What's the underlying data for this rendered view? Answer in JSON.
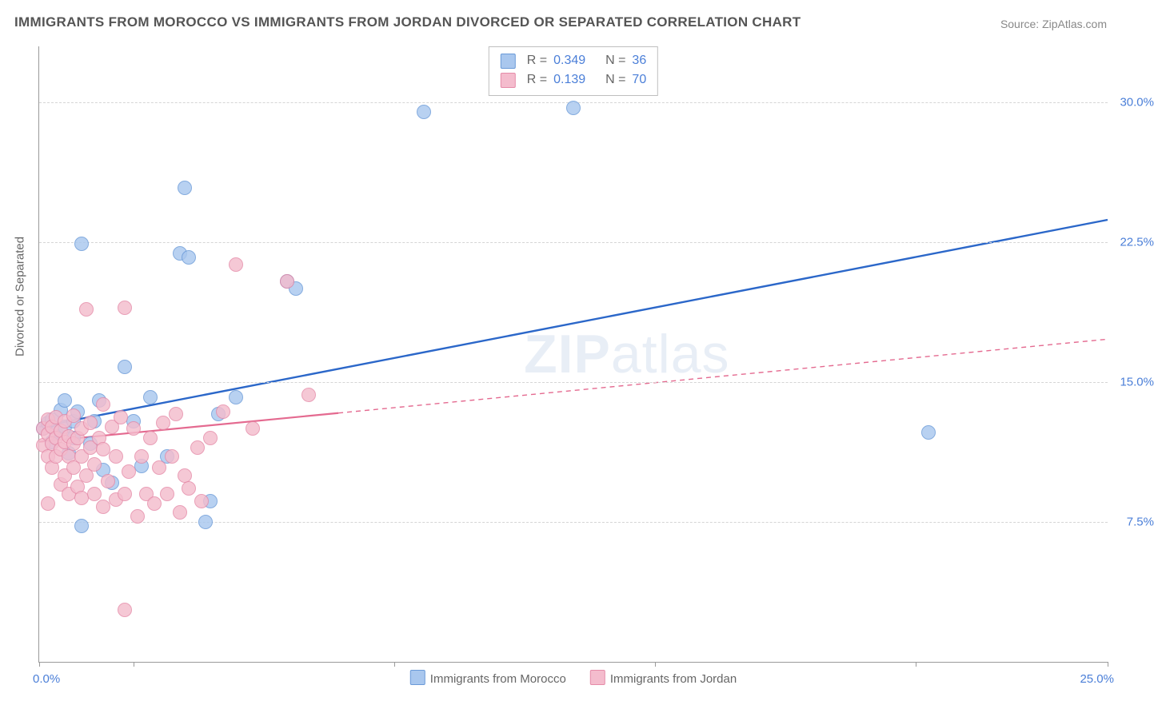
{
  "title": "IMMIGRANTS FROM MOROCCO VS IMMIGRANTS FROM JORDAN DIVORCED OR SEPARATED CORRELATION CHART",
  "source": "Source: ZipAtlas.com",
  "ylabel": "Divorced or Separated",
  "watermark": {
    "bold": "ZIP",
    "rest": "atlas"
  },
  "chart": {
    "type": "scatter",
    "xlim": [
      0,
      25
    ],
    "ylim": [
      0,
      33
    ],
    "x_start_label": "0.0%",
    "x_end_label": "25.0%",
    "x_tick_positions": [
      0,
      2.2,
      8.3,
      14.4,
      20.5,
      25
    ],
    "y_gridlines": [
      {
        "value": 7.5,
        "label": "7.5%"
      },
      {
        "value": 15.0,
        "label": "15.0%"
      },
      {
        "value": 22.5,
        "label": "22.5%"
      },
      {
        "value": 30.0,
        "label": "30.0%"
      }
    ],
    "grid_color": "#d5d5d5",
    "axis_color": "#9a9a9a",
    "background": "#ffffff",
    "tick_label_color": "#4b7fd8"
  },
  "series": [
    {
      "key": "morocco",
      "label": "Immigrants from Morocco",
      "R": "0.349",
      "N": "36",
      "fill": "#a9c7ee",
      "stroke": "#6a9ad8",
      "line_color": "#2b67c9",
      "line_width": 2.4,
      "trend": {
        "x1": 0,
        "y1": 12.6,
        "x2": 25,
        "y2": 23.7,
        "dashed_after": 25
      },
      "points": [
        [
          0.1,
          12.5
        ],
        [
          0.2,
          12.8
        ],
        [
          0.3,
          11.8
        ],
        [
          0.3,
          13.0
        ],
        [
          0.4,
          12.3
        ],
        [
          0.5,
          13.5
        ],
        [
          0.6,
          12.6
        ],
        [
          0.6,
          14.0
        ],
        [
          0.7,
          11.2
        ],
        [
          0.8,
          12.0
        ],
        [
          0.8,
          12.9
        ],
        [
          0.9,
          13.4
        ],
        [
          1.0,
          22.4
        ],
        [
          1.0,
          7.3
        ],
        [
          1.2,
          11.7
        ],
        [
          1.3,
          12.9
        ],
        [
          1.4,
          14.0
        ],
        [
          1.5,
          10.3
        ],
        [
          1.7,
          9.6
        ],
        [
          2.0,
          15.8
        ],
        [
          2.2,
          12.9
        ],
        [
          2.4,
          10.5
        ],
        [
          2.6,
          14.2
        ],
        [
          3.0,
          11.0
        ],
        [
          3.3,
          21.9
        ],
        [
          3.4,
          25.4
        ],
        [
          3.5,
          21.7
        ],
        [
          3.9,
          7.5
        ],
        [
          4.0,
          8.6
        ],
        [
          4.2,
          13.3
        ],
        [
          4.6,
          14.2
        ],
        [
          5.8,
          20.4
        ],
        [
          9.0,
          29.5
        ],
        [
          12.5,
          29.7
        ],
        [
          20.8,
          12.3
        ],
        [
          6.0,
          20.0
        ]
      ]
    },
    {
      "key": "jordan",
      "label": "Immigrants from Jordan",
      "R": "0.139",
      "N": "70",
      "fill": "#f4bccd",
      "stroke": "#e58ba8",
      "line_color": "#e46a90",
      "line_width": 2.2,
      "trend": {
        "x1": 0,
        "y1": 11.8,
        "x2": 7.0,
        "y2": 13.3,
        "dashed_after": 7.0,
        "x3": 25,
        "y3": 17.3
      },
      "points": [
        [
          0.1,
          11.6
        ],
        [
          0.1,
          12.5
        ],
        [
          0.2,
          11.0
        ],
        [
          0.2,
          12.2
        ],
        [
          0.2,
          13.0
        ],
        [
          0.3,
          10.4
        ],
        [
          0.3,
          11.7
        ],
        [
          0.3,
          12.6
        ],
        [
          0.4,
          11.0
        ],
        [
          0.4,
          12.0
        ],
        [
          0.4,
          13.1
        ],
        [
          0.5,
          9.5
        ],
        [
          0.5,
          11.4
        ],
        [
          0.5,
          12.4
        ],
        [
          0.6,
          10.0
        ],
        [
          0.6,
          11.8
        ],
        [
          0.6,
          12.9
        ],
        [
          0.7,
          9.0
        ],
        [
          0.7,
          11.0
        ],
        [
          0.7,
          12.1
        ],
        [
          0.8,
          10.4
        ],
        [
          0.8,
          11.7
        ],
        [
          0.8,
          13.2
        ],
        [
          0.9,
          9.4
        ],
        [
          0.9,
          12.0
        ],
        [
          1.0,
          8.8
        ],
        [
          1.0,
          11.0
        ],
        [
          1.0,
          12.5
        ],
        [
          1.1,
          18.9
        ],
        [
          1.1,
          10.0
        ],
        [
          1.2,
          11.5
        ],
        [
          1.2,
          12.8
        ],
        [
          1.3,
          9.0
        ],
        [
          1.3,
          10.6
        ],
        [
          1.4,
          12.0
        ],
        [
          1.5,
          8.3
        ],
        [
          1.5,
          11.4
        ],
        [
          1.6,
          9.7
        ],
        [
          1.7,
          12.6
        ],
        [
          1.8,
          8.7
        ],
        [
          1.8,
          11.0
        ],
        [
          1.9,
          13.1
        ],
        [
          2.0,
          9.0
        ],
        [
          2.0,
          19.0
        ],
        [
          2.1,
          10.2
        ],
        [
          2.2,
          12.5
        ],
        [
          2.3,
          7.8
        ],
        [
          2.4,
          11.0
        ],
        [
          2.5,
          9.0
        ],
        [
          2.6,
          12.0
        ],
        [
          2.7,
          8.5
        ],
        [
          2.8,
          10.4
        ],
        [
          2.9,
          12.8
        ],
        [
          3.0,
          9.0
        ],
        [
          3.1,
          11.0
        ],
        [
          3.2,
          13.3
        ],
        [
          3.3,
          8.0
        ],
        [
          3.4,
          10.0
        ],
        [
          3.5,
          9.3
        ],
        [
          3.7,
          11.5
        ],
        [
          3.8,
          8.6
        ],
        [
          4.0,
          12.0
        ],
        [
          4.3,
          13.4
        ],
        [
          4.6,
          21.3
        ],
        [
          5.0,
          12.5
        ],
        [
          5.8,
          20.4
        ],
        [
          6.3,
          14.3
        ],
        [
          2.0,
          2.8
        ],
        [
          1.5,
          13.8
        ],
        [
          0.2,
          8.5
        ]
      ]
    }
  ]
}
